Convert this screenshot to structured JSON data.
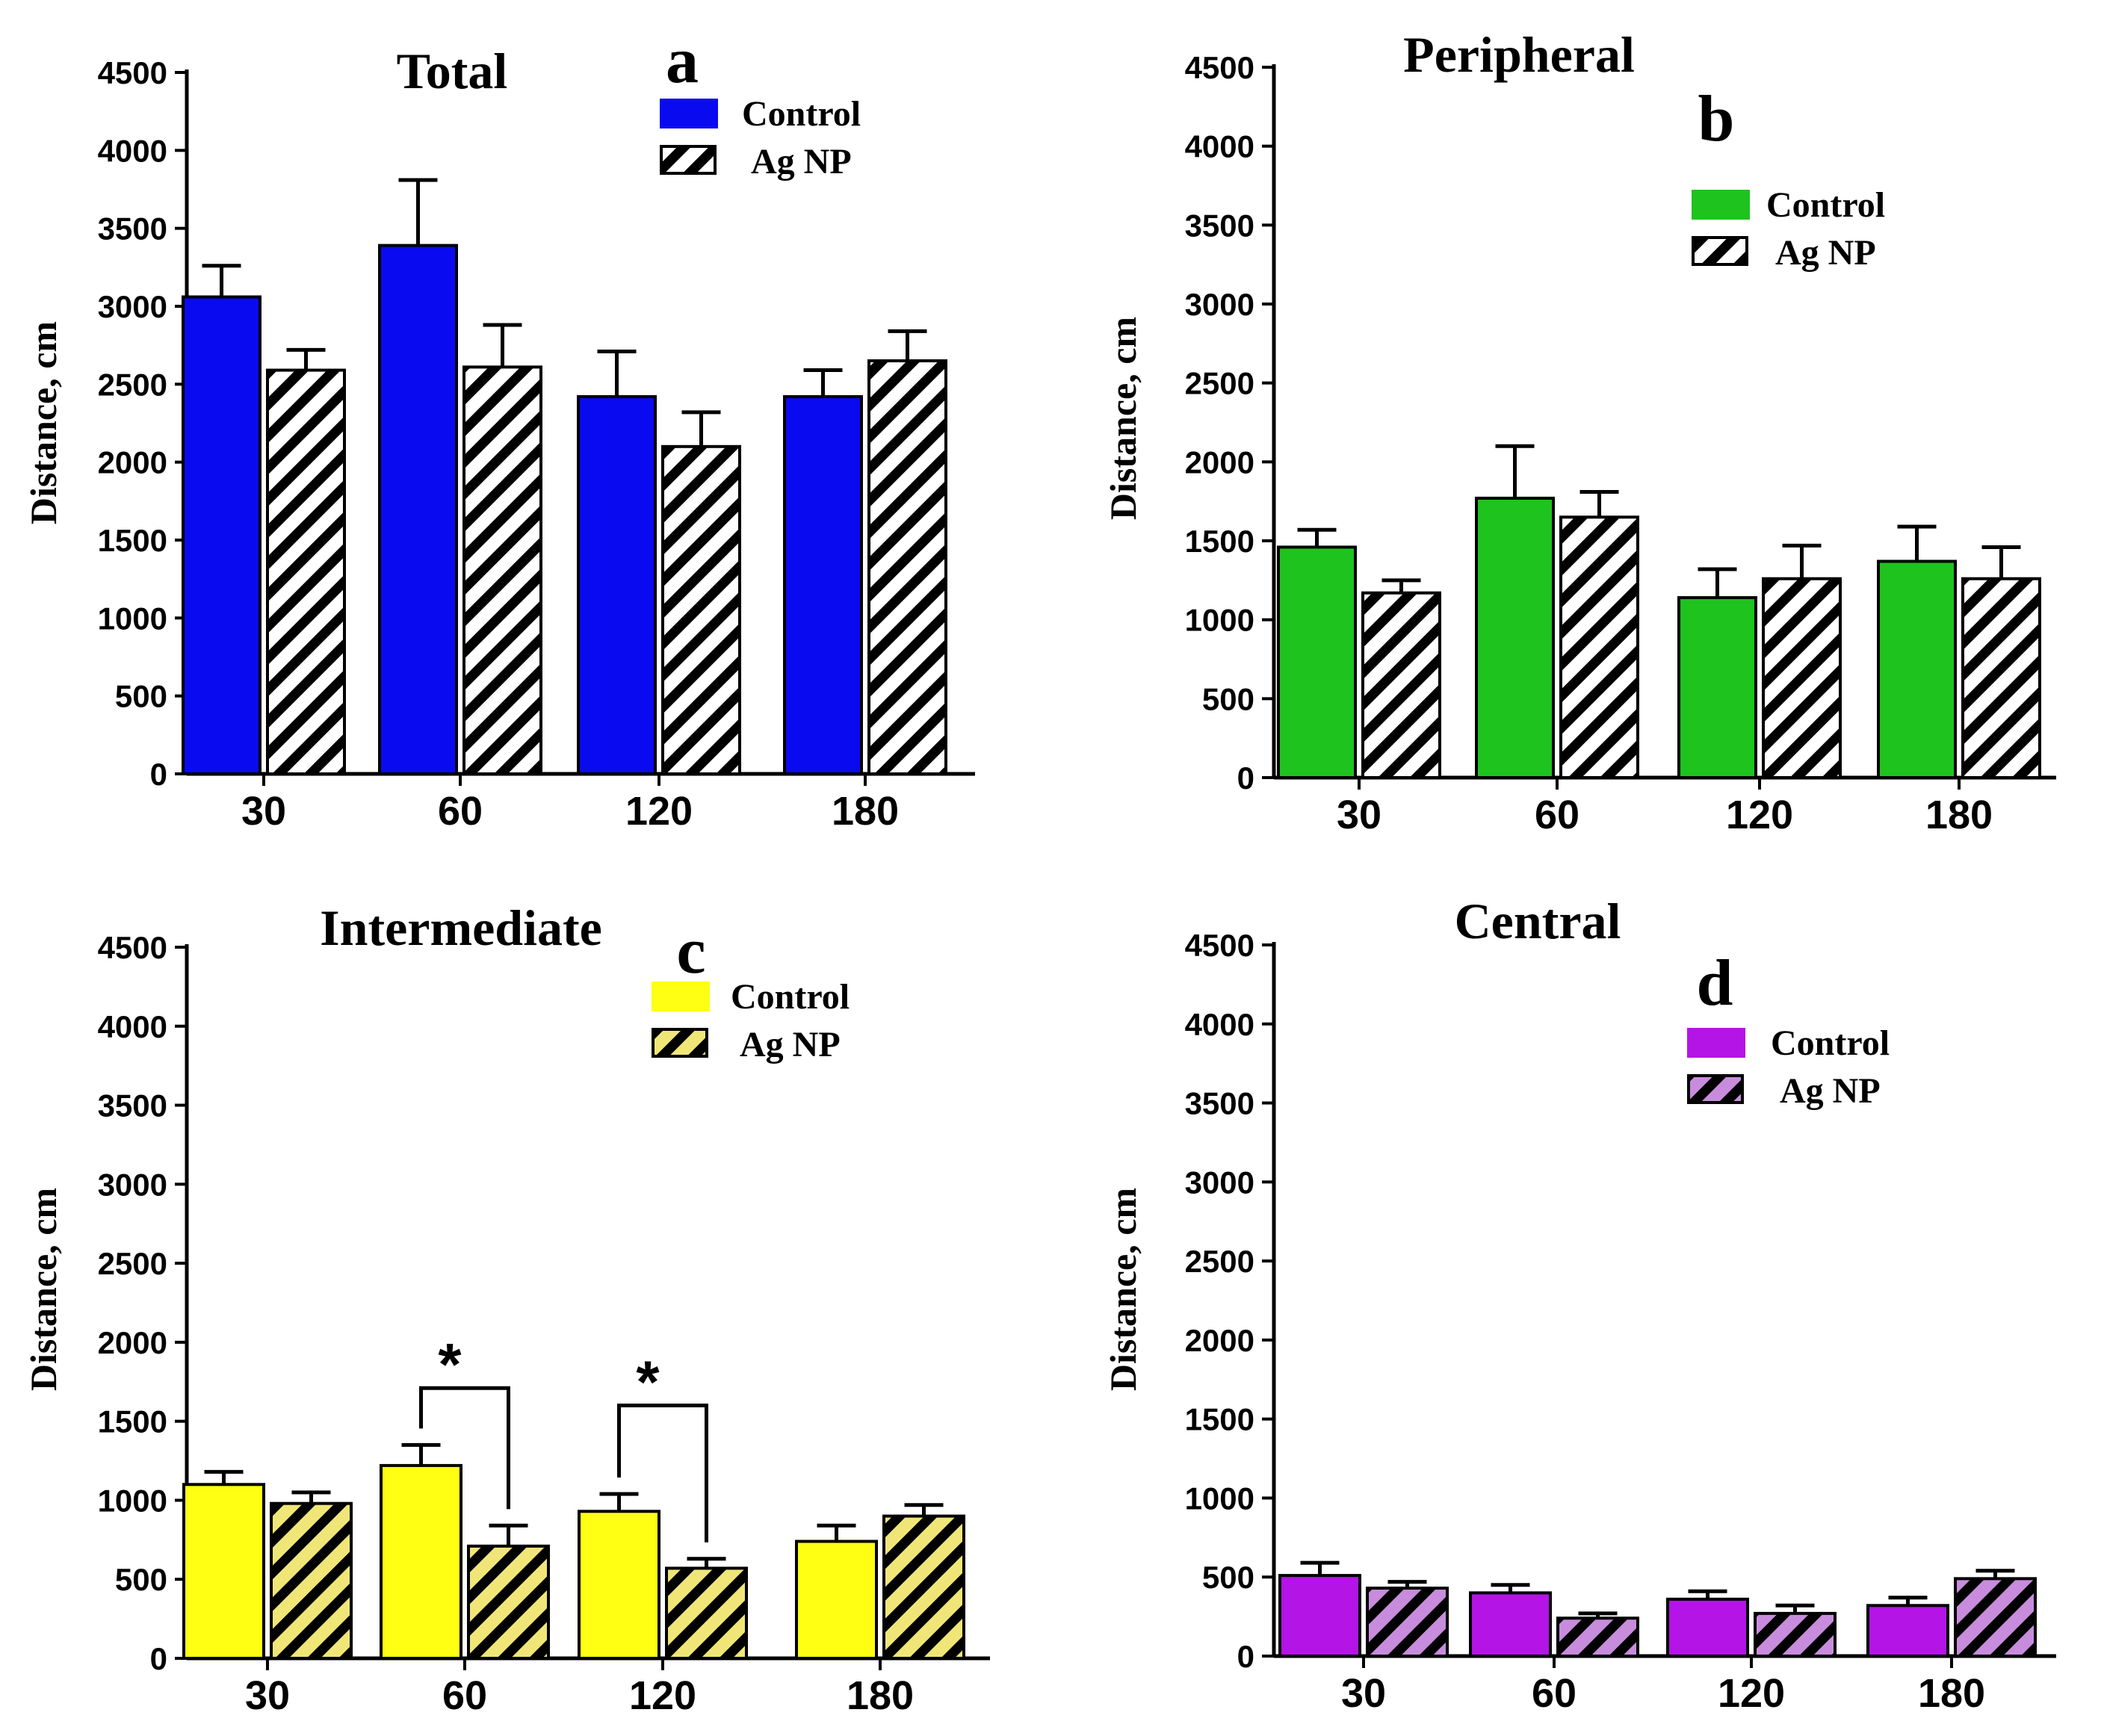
{
  "figure": {
    "series_names": [
      "Control",
      "Ag NP"
    ]
  },
  "chart_data": [
    {
      "type": "bar",
      "panel": "a",
      "title": "Total",
      "ylabel": "Distance, cm",
      "xlabel": "",
      "ylim": [
        0,
        4500
      ],
      "yticks": [
        0,
        500,
        1000,
        1500,
        2000,
        2500,
        3000,
        3500,
        4000,
        4500
      ],
      "categories": [
        "30",
        "60",
        "120",
        "180"
      ],
      "legend_position": "top-right",
      "colors": {
        "control": "#0a0af0",
        "pattern_bg": "#ffffff"
      },
      "series": [
        {
          "name": "Control",
          "values": [
            3060,
            3390,
            2420,
            2420
          ],
          "errors": [
            200,
            420,
            290,
            170
          ]
        },
        {
          "name": "Ag NP",
          "values": [
            2590,
            2610,
            2100,
            2650
          ],
          "errors": [
            130,
            270,
            220,
            190
          ]
        }
      ],
      "annotations": []
    },
    {
      "type": "bar",
      "panel": "b",
      "title": "Peripheral",
      "ylabel": "Distance, cm",
      "xlabel": "",
      "ylim": [
        0,
        4500
      ],
      "yticks": [
        0,
        500,
        1000,
        1500,
        2000,
        2500,
        3000,
        3500,
        4000,
        4500
      ],
      "categories": [
        "30",
        "60",
        "120",
        "180"
      ],
      "legend_position": "top-right",
      "colors": {
        "control": "#1ec31e",
        "pattern_bg": "#ffffff"
      },
      "series": [
        {
          "name": "Control",
          "values": [
            1460,
            1770,
            1140,
            1370
          ],
          "errors": [
            110,
            330,
            180,
            220
          ]
        },
        {
          "name": "Ag NP",
          "values": [
            1170,
            1650,
            1260,
            1260
          ],
          "errors": [
            80,
            160,
            210,
            200
          ]
        }
      ],
      "annotations": []
    },
    {
      "type": "bar",
      "panel": "c",
      "title": "Intermediate",
      "ylabel": "Distance, cm",
      "xlabel": "",
      "ylim": [
        0,
        4500
      ],
      "yticks": [
        0,
        500,
        1000,
        1500,
        2000,
        2500,
        3000,
        3500,
        4000,
        4500
      ],
      "categories": [
        "30",
        "60",
        "120",
        "180"
      ],
      "legend_position": "top-right",
      "colors": {
        "control": "#ffff14",
        "pattern_bg": "#f0e678"
      },
      "series": [
        {
          "name": "Control",
          "values": [
            1100,
            1220,
            930,
            740
          ],
          "errors": [
            80,
            130,
            110,
            100
          ]
        },
        {
          "name": "Ag NP",
          "values": [
            980,
            710,
            570,
            900
          ],
          "errors": [
            70,
            130,
            60,
            70
          ]
        }
      ],
      "annotations": [
        {
          "text": "*",
          "category_index": 1,
          "bracket_top": 1710
        },
        {
          "text": "*",
          "category_index": 2,
          "bracket_top": 1600
        }
      ]
    },
    {
      "type": "bar",
      "panel": "d",
      "title": "Central",
      "ylabel": "Distance, cm",
      "xlabel": "",
      "ylim": [
        0,
        4500
      ],
      "yticks": [
        0,
        500,
        1000,
        1500,
        2000,
        2500,
        3000,
        3500,
        4000,
        4500
      ],
      "categories": [
        "30",
        "60",
        "120",
        "180"
      ],
      "legend_position": "top-right",
      "colors": {
        "control": "#b414e6",
        "pattern_bg": "#c88cdc"
      },
      "series": [
        {
          "name": "Control",
          "values": [
            510,
            400,
            360,
            320
          ],
          "errors": [
            80,
            50,
            50,
            50
          ]
        },
        {
          "name": "Ag NP",
          "values": [
            430,
            240,
            270,
            490
          ],
          "errors": [
            40,
            30,
            50,
            50
          ]
        }
      ],
      "annotations": []
    }
  ]
}
